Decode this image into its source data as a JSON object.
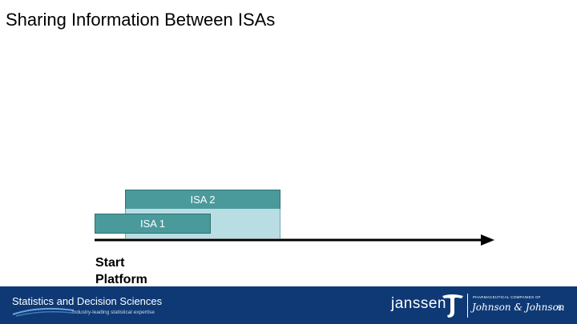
{
  "slide": {
    "title": "Sharing Information Between ISAs"
  },
  "diagram": {
    "isa2_label": "ISA 2",
    "isa1_label": "ISA 1",
    "start_label_line1": "Start",
    "start_label_line2": "Platform"
  },
  "footer": {
    "brand": "Statistics and Decision Sciences",
    "tagline": "Industry-leading statistical expertise",
    "company": "janssen",
    "pharma_line": "PHARMACEUTICAL COMPANIES OF",
    "parent": "Johnson & Johnson",
    "page_number": "5"
  },
  "colors": {
    "isa_dark": "#4a9a9c",
    "isa_light": "#b8dde2",
    "footer_bg": "#0e3975"
  }
}
